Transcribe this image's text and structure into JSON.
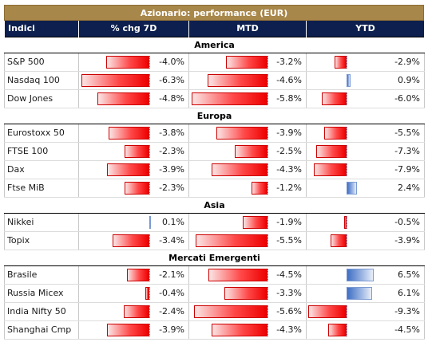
{
  "title": "Azionario: performance (EUR)",
  "headers": {
    "indices": "Indici",
    "chg7d": "% chg 7D",
    "mtd": "MTD",
    "ytd": "YTD"
  },
  "scale": {
    "chg7d_min": -6.3,
    "mtd_min": -5.8,
    "ytd_min": -9.3,
    "ytd_max": 6.5
  },
  "sections": [
    {
      "name": "America",
      "rows": [
        {
          "name": "S&P 500",
          "chg7d": -4.0,
          "mtd": -3.2,
          "ytd": -2.9
        },
        {
          "name": "Nasdaq 100",
          "chg7d": -6.3,
          "mtd": -4.6,
          "ytd": 0.9
        },
        {
          "name": "Dow Jones",
          "chg7d": -4.8,
          "mtd": -5.8,
          "ytd": -6.0
        }
      ]
    },
    {
      "name": "Europa",
      "rows": [
        {
          "name": "Eurostoxx 50",
          "chg7d": -3.8,
          "mtd": -3.9,
          "ytd": -5.5
        },
        {
          "name": "FTSE 100",
          "chg7d": -2.3,
          "mtd": -2.5,
          "ytd": -7.3
        },
        {
          "name": "Dax",
          "chg7d": -3.9,
          "mtd": -4.3,
          "ytd": -7.9
        },
        {
          "name": "Ftse MiB",
          "chg7d": -2.3,
          "mtd": -1.2,
          "ytd": 2.4
        }
      ]
    },
    {
      "name": "Asia",
      "rows": [
        {
          "name": "Nikkei",
          "chg7d": 0.1,
          "mtd": -1.9,
          "ytd": -0.5
        },
        {
          "name": "Topix",
          "chg7d": -3.4,
          "mtd": -5.5,
          "ytd": -3.9
        }
      ]
    },
    {
      "name": "Mercati Emergenti",
      "rows": [
        {
          "name": "Brasile",
          "chg7d": -2.1,
          "mtd": -4.5,
          "ytd": 6.5
        },
        {
          "name": "Russia Micex",
          "chg7d": -0.4,
          "mtd": -3.3,
          "ytd": 6.1
        },
        {
          "name": "India Nifty 50",
          "chg7d": -2.4,
          "mtd": -5.6,
          "ytd": -9.3
        },
        {
          "name": "Shanghai Cmp",
          "chg7d": -3.9,
          "mtd": -4.3,
          "ytd": -4.5
        }
      ]
    }
  ]
}
